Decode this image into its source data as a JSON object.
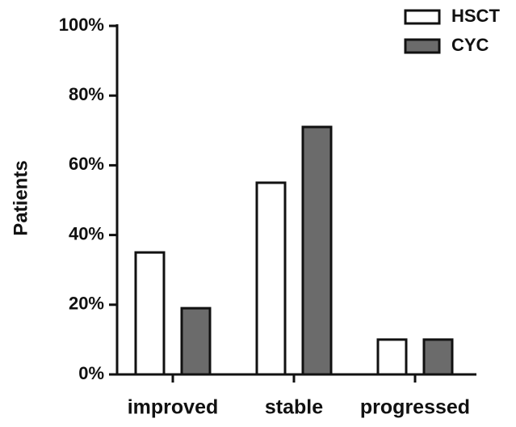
{
  "chart_data": {
    "type": "bar",
    "y_label": "Patients",
    "categories": [
      "improved",
      "stable",
      "progressed"
    ],
    "series": [
      {
        "name": "HSCT",
        "color": "#ffffff",
        "values": [
          35,
          55,
          10
        ]
      },
      {
        "name": "CYC",
        "color": "#6b6b6b",
        "values": [
          19,
          71,
          10
        ]
      }
    ],
    "ylim": [
      0,
      100
    ],
    "yticks": [
      {
        "value": 0,
        "label": "0%"
      },
      {
        "value": 20,
        "label": "20%"
      },
      {
        "value": 40,
        "label": "40%"
      },
      {
        "value": 60,
        "label": "60%"
      },
      {
        "value": 80,
        "label": "80%"
      },
      {
        "value": 100,
        "label": "100%"
      }
    ],
    "legend": "top-right"
  }
}
